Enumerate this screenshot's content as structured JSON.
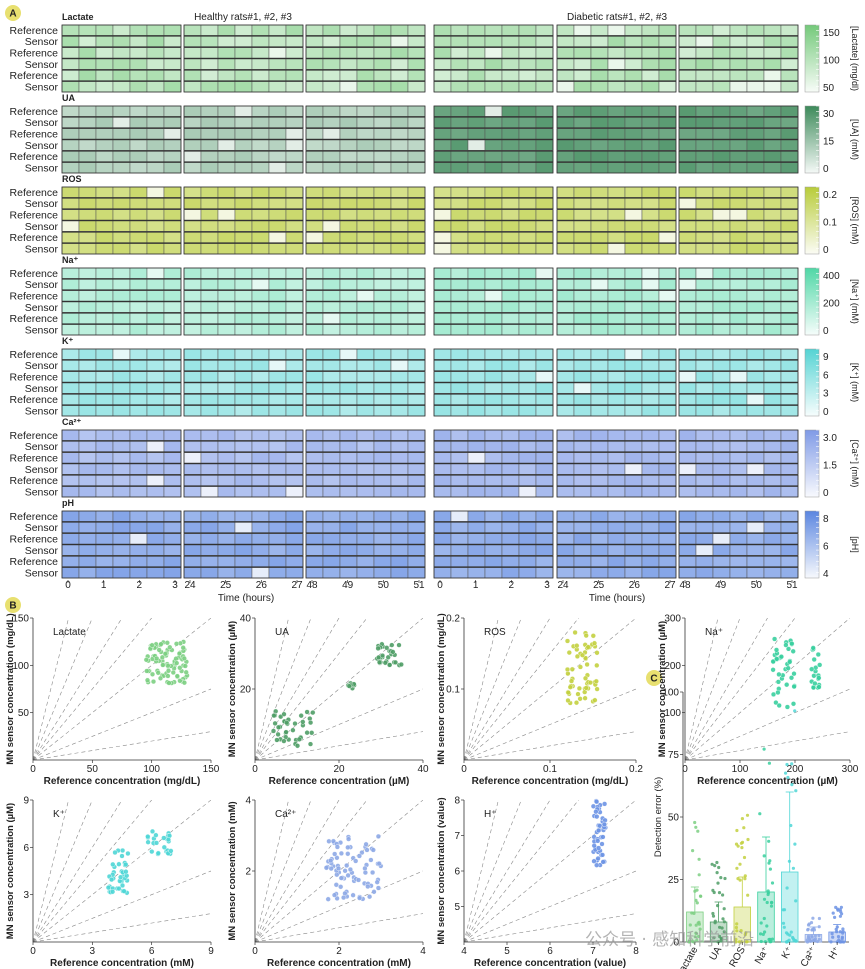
{
  "panel_labels": {
    "a": "A",
    "b": "B",
    "c": "C"
  },
  "heatmap": {
    "group_titles": [
      "Healthy rats#1, #2, #3",
      "Diabetic rats#1, #2, #3"
    ],
    "row_labels": [
      "Reference",
      "Sensor",
      "Reference",
      "Sensor",
      "Reference",
      "Sensor"
    ],
    "time_label": "Time (hours)",
    "time_ticks": [
      [
        "0",
        "1",
        "2",
        "3"
      ],
      [
        "24",
        "25",
        "26",
        "27"
      ],
      [
        "48",
        "49",
        "50",
        "51"
      ]
    ],
    "analytes": [
      {
        "name": "Lactate",
        "colorbar_title": "[Lactate] (mg/dl)",
        "color": "#74c97a",
        "ticks": [
          "150",
          "100",
          "50"
        ],
        "range": [
          50,
          170
        ],
        "healthy_mean": 100,
        "diabetic_mean": 100,
        "noise": 25
      },
      {
        "name": "UA",
        "colorbar_title": "[UA] (mM)",
        "color": "#3d8a5a",
        "ticks": [
          "30",
          "15",
          "0"
        ],
        "range": [
          0,
          38
        ],
        "healthy_mean": 11,
        "diabetic_mean": 31,
        "noise": 3
      },
      {
        "name": "ROS",
        "colorbar_title": "[ROS] (mM)",
        "color": "#b8cc3a",
        "ticks": [
          "0.2",
          "0.1",
          "0"
        ],
        "range": [
          0,
          0.2
        ],
        "healthy_mean": 0.13,
        "diabetic_mean": 0.13,
        "noise": 0.02
      },
      {
        "name": "Na⁺",
        "colorbar_title": "[Na⁺] (mM)",
        "color": "#50d7a6",
        "ticks": [
          "400",
          "200",
          "0"
        ],
        "range": [
          0,
          500
        ],
        "healthy_mean": 160,
        "diabetic_mean": 200,
        "noise": 40
      },
      {
        "name": "K⁺",
        "colorbar_title": "[K⁺] (mM)",
        "color": "#55d3d3",
        "ticks": [
          "9",
          "6",
          "3",
          "0"
        ],
        "range": [
          0,
          9
        ],
        "healthy_mean": 4.2,
        "diabetic_mean": 4.5,
        "noise": 0.8
      },
      {
        "name": "Ca²⁺",
        "colorbar_title": "[Ca²⁺] (mM)",
        "color": "#7f9ae6",
        "ticks": [
          "3.0",
          "1.5",
          "0"
        ],
        "range": [
          0,
          3.6
        ],
        "healthy_mean": 2.2,
        "diabetic_mean": 2.4,
        "noise": 0.3
      },
      {
        "name": "pH",
        "colorbar_title": "[pH]",
        "color": "#5b86e0",
        "ticks": [
          "8",
          "6",
          "4"
        ],
        "range": [
          3,
          9.5
        ],
        "healthy_mean": 7.3,
        "diabetic_mean": 7.2,
        "noise": 0.6
      }
    ]
  },
  "chart_data": [
    {
      "type": "scatter",
      "title": "Lactate",
      "xlabel": "Reference concentration (mg/dL)",
      "ylabel": "MN sensor concentration (mg/dL)",
      "xlim": [
        0,
        150
      ],
      "ylim": [
        0,
        150
      ],
      "xticks": [
        "0",
        "50",
        "100",
        "150"
      ],
      "yticks": [
        "50",
        "100",
        "150"
      ],
      "color": "#7ccf82",
      "clusters": [
        {
          "x": [
            95,
            130
          ],
          "y": [
            80,
            125
          ],
          "n": 90
        }
      ]
    },
    {
      "type": "scatter",
      "title": "UA",
      "xlabel": "Reference concentration (µM)",
      "ylabel": "MN sensor concentration (µM)",
      "xlim": [
        0,
        40
      ],
      "ylim": [
        0,
        40
      ],
      "xticks": [
        "0",
        "20",
        "40"
      ],
      "yticks": [
        "20",
        "40"
      ],
      "color": "#4f9d66",
      "clusters": [
        {
          "x": [
            4,
            14
          ],
          "y": [
            4,
            14
          ],
          "n": 40
        },
        {
          "x": [
            22,
            24
          ],
          "y": [
            20,
            22
          ],
          "n": 8
        },
        {
          "x": [
            29,
            35
          ],
          "y": [
            26,
            33
          ],
          "n": 30
        }
      ]
    },
    {
      "type": "scatter",
      "title": "ROS",
      "xlabel": "Reference concentration (mg/dL)",
      "ylabel": "MN sensor concentration (mg/dL)",
      "xlim": [
        0,
        0.2
      ],
      "ylim": [
        0,
        0.2
      ],
      "xticks": [
        "0",
        "0.1",
        "0.2"
      ],
      "yticks": [
        "0.1",
        "0.2"
      ],
      "color": "#c3d03f",
      "clusters": [
        {
          "x": [
            0.12,
            0.155
          ],
          "y": [
            0.08,
            0.18
          ],
          "n": 60
        }
      ]
    },
    {
      "type": "scatter",
      "title": "Na⁺",
      "xlabel": "Reference concentration (µM)",
      "ylabel": "MN sensor concentration (µM)",
      "xlim": [
        0,
        300
      ],
      "ylim": [
        0,
        300
      ],
      "xticks": [
        "0",
        "100",
        "200",
        "300"
      ],
      "yticks": [
        "100",
        "200",
        "300"
      ],
      "color": "#38cf9e",
      "clusters": [
        {
          "x": [
            160,
            200
          ],
          "y": [
            110,
            260
          ],
          "n": 40
        },
        {
          "x": [
            230,
            245
          ],
          "y": [
            150,
            240
          ],
          "n": 20
        }
      ]
    },
    {
      "type": "scatter",
      "title": "K⁺",
      "xlabel": "Reference concentration (mM)",
      "ylabel": "MN sensor concentration (µM)",
      "xlim": [
        0,
        9
      ],
      "ylim": [
        0,
        9
      ],
      "xticks": [
        "0",
        "3",
        "6",
        "9"
      ],
      "yticks": [
        "3",
        "6",
        "9"
      ],
      "color": "#4fd6d6",
      "clusters": [
        {
          "x": [
            3.8,
            4.8
          ],
          "y": [
            2.8,
            5.8
          ],
          "n": 40
        },
        {
          "x": [
            5.8,
            7.0
          ],
          "y": [
            5.5,
            7.2
          ],
          "n": 25
        }
      ]
    },
    {
      "type": "scatter",
      "title": "Ca²⁺",
      "xlabel": "Reference concentration (mM)",
      "ylabel": "MN sensor concentration (mM)",
      "xlim": [
        0,
        4
      ],
      "ylim": [
        0,
        4
      ],
      "xticks": [
        "0",
        "2",
        "4"
      ],
      "yticks": [
        "2",
        "4"
      ],
      "color": "#8da8e6",
      "clusters": [
        {
          "x": [
            1.7,
            3.0
          ],
          "y": [
            1.2,
            3.0
          ],
          "n": 80
        }
      ]
    },
    {
      "type": "scatter",
      "title": "H⁺",
      "xlabel": "Reference concentration (value)",
      "ylabel": "MN sensor concentration (value)",
      "xlim": [
        4,
        8
      ],
      "ylim": [
        4,
        8
      ],
      "xticks": [
        "4",
        "5",
        "6",
        "7",
        "8"
      ],
      "yticks": [
        "5",
        "6",
        "7",
        "8"
      ],
      "color": "#6d93e4",
      "clusters": [
        {
          "x": [
            7.0,
            7.3
          ],
          "y": [
            6.1,
            8.0
          ],
          "n": 50
        }
      ]
    },
    {
      "type": "bar",
      "title": "Detection error",
      "ylabel": "Detection error (%)",
      "ylim": [
        0,
        100
      ],
      "yticks": [
        "0",
        "25",
        "50",
        "75",
        "100"
      ],
      "categories": [
        "Lactate",
        "UA",
        "ROS",
        "Na⁺",
        "K⁺",
        "Ca²⁺",
        "H⁺"
      ],
      "values": [
        12,
        8,
        14,
        20,
        28,
        3,
        4
      ],
      "errors": [
        10,
        8,
        12,
        22,
        32,
        3,
        3
      ],
      "maxima": [
        48,
        35,
        55,
        90,
        95,
        10,
        15
      ],
      "colors": [
        "#7ccf82",
        "#4f9d66",
        "#c3d03f",
        "#38cf9e",
        "#4fd6d6",
        "#8da8e6",
        "#6d93e4"
      ]
    }
  ],
  "watermark": "公众号 · 感知科学前沿"
}
